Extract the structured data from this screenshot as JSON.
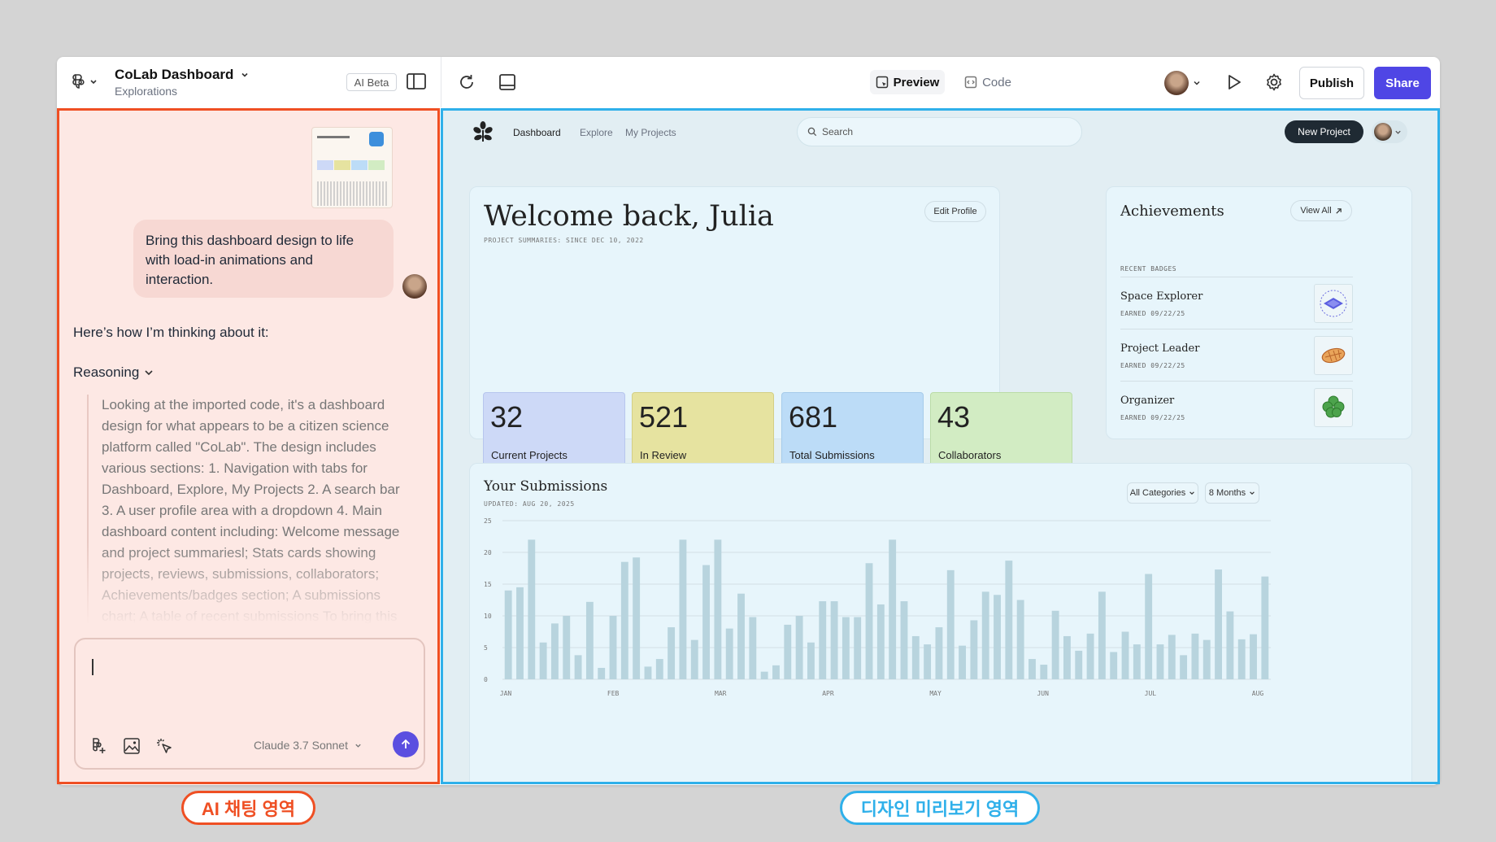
{
  "app": {
    "title": "CoLab Dashboard",
    "subtitle": "Explorations",
    "ai_badge": "AI Beta",
    "preview_label": "Preview",
    "code_label": "Code",
    "publish_label": "Publish",
    "share_label": "Share"
  },
  "chat": {
    "user_message": "Bring this dashboard design to life with load-in animations and interaction.",
    "assistant_intro": "Here’s how I’m thinking about it:",
    "reasoning_label": "Reasoning",
    "reasoning_text": "Looking at the imported code, it's a dashboard design for what appears to be a citizen science platform called \"CoLab\". The design includes various sections: 1. Navigation with tabs for Dashboard, Explore, My Projects 2. A search bar 3. A user profile area with a dropdown 4. Main dashboard content including: Welcome message and project summariesl; Stats cards showing projects, reviews, submissions, collaborators; Achievements/badges section; A submissions chart; A table of recent submissions To bring this",
    "input_value": "",
    "model_label": "Claude 3.7 Sonnet"
  },
  "preview": {
    "nav": [
      "Dashboard",
      "Explore",
      "My Projects"
    ],
    "search_placeholder": "Search",
    "new_project_label": "New Project",
    "welcome_title": "Welcome back, Julia",
    "welcome_sub": "PROJECT SUMMARIES: SINCE DEC 10, 2022",
    "edit_profile_label": "Edit Profile",
    "stats": [
      {
        "value": "32",
        "label": "Current Projects",
        "color": "#cdd9f7"
      },
      {
        "value": "521",
        "label": "In Review",
        "color": "#e6e3a0"
      },
      {
        "value": "681",
        "label": "Total Submissions",
        "color": "#bcdcf7"
      },
      {
        "value": "43",
        "label": "Collaborators",
        "color": "#d2ecc3"
      }
    ],
    "achievements_title": "Achievements",
    "view_all_label": "View All",
    "recent_badges_label": "RECENT BADGES",
    "badges": [
      {
        "name": "Space Explorer",
        "earned": "EARNED 09/22/25",
        "icon": "planet-badge-icon"
      },
      {
        "name": "Project Leader",
        "earned": "EARNED 09/22/25",
        "icon": "football-badge-icon"
      },
      {
        "name": "Organizer",
        "earned": "EARNED 09/22/25",
        "icon": "clover-badge-icon"
      }
    ],
    "submissions_title": "Your Submissions",
    "submissions_updated": "UPDATED: AUG 20, 2025",
    "filter_categories": "All Categories",
    "filter_range": "8 Months"
  },
  "labels": {
    "chat_area": "AI 채팅 영역",
    "preview_area": "디자인 미리보기 영역"
  },
  "colors": {
    "accent": "#4f46e5",
    "chat_border": "#ef4f23",
    "preview_border": "#2fb0ea",
    "bar": "#b8d4de"
  },
  "chart_data": {
    "type": "bar",
    "title": "Your Submissions",
    "ylim": [
      0,
      25
    ],
    "yticks": [
      0,
      5,
      10,
      15,
      20,
      25
    ],
    "month_labels": [
      "JAN",
      "FEB",
      "MAR",
      "APR",
      "MAY",
      "JUN",
      "JUL",
      "AUG"
    ],
    "grid": true,
    "values": [
      14,
      14.5,
      22,
      5.8,
      8.8,
      10,
      3.8,
      12.2,
      1.8,
      10,
      18.5,
      19.2,
      2,
      3.2,
      8.2,
      22,
      6.2,
      18,
      22,
      8,
      13.5,
      9.8,
      1.2,
      2.2,
      8.6,
      10,
      5.8,
      12.3,
      12.3,
      9.8,
      9.8,
      18.3,
      11.8,
      22,
      12.3,
      6.8,
      5.5,
      8.2,
      17.2,
      5.3,
      9.3,
      13.8,
      13.3,
      18.7,
      12.5,
      3.2,
      2.3,
      10.8,
      6.8,
      4.5,
      7.2,
      13.8,
      4.3,
      7.5,
      5.5,
      16.6,
      5.5,
      7,
      3.8,
      7.2,
      6.2,
      17.3,
      10.7,
      6.3,
      7.1,
      16.2
    ]
  }
}
